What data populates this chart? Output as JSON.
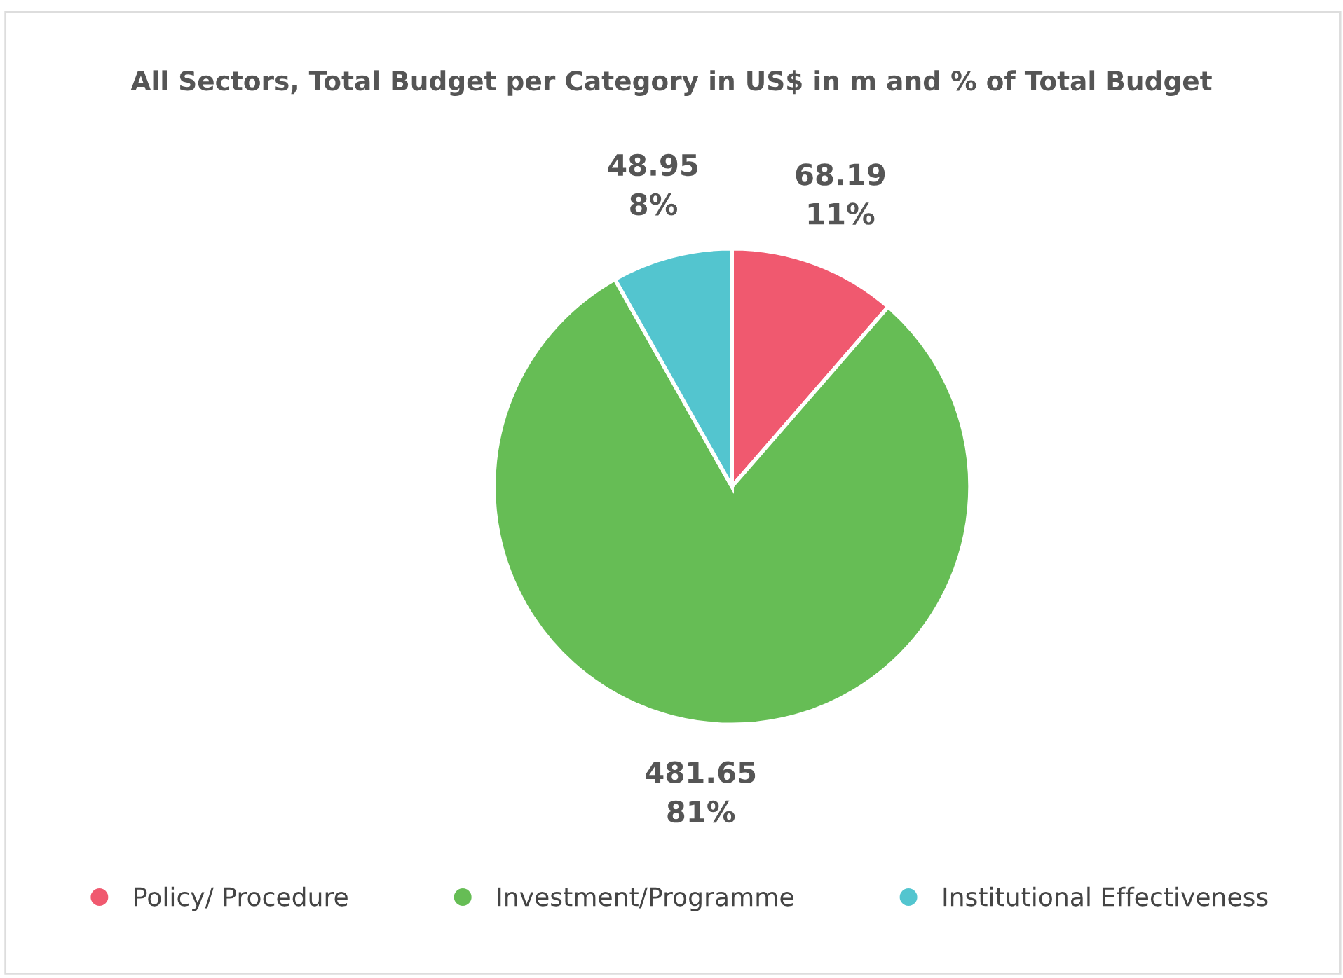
{
  "chart_data": {
    "type": "pie",
    "title": "All Sectors, Total Budget per Category in US$ in m and % of Total Budget",
    "categories": [
      "Policy/ Procedure",
      "Investment/Programme",
      "Institutional Effectiveness"
    ],
    "values": [
      68.19,
      481.65,
      48.95
    ],
    "colors": [
      "#f0596f",
      "#66bd55",
      "#53c5cf"
    ],
    "value_labels": [
      "68.19\n11%",
      "481.65\n81%",
      "48.95\n8%"
    ],
    "legend": "bottom"
  }
}
